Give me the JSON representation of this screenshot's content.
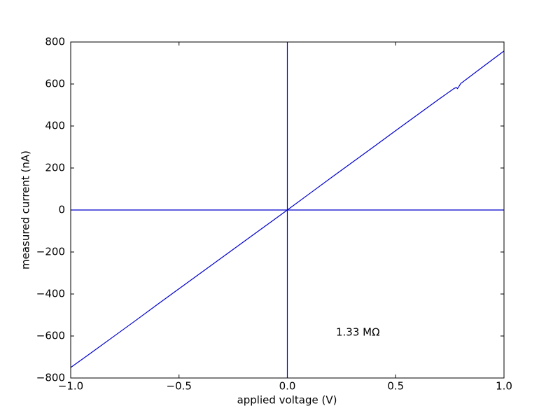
{
  "chart_data": {
    "type": "line",
    "xlabel": "applied voltage (V)",
    "ylabel": "measured current (nA)",
    "annotation": "1.33 MΩ",
    "x": [
      -1,
      -0.9,
      -0.8,
      -0.7,
      -0.6,
      -0.5,
      -0.4,
      -0.3,
      -0.2,
      -0.1,
      0,
      0.1,
      0.2,
      0.3,
      0.4,
      0.5,
      0.6,
      0.7,
      0.77,
      0.78,
      0.785,
      0.79,
      0.8,
      0.9,
      1
    ],
    "series": [
      {
        "color": "#0000cc",
        "values": [
          -750,
          -676,
          -601,
          -526,
          -450,
          -375,
          -300,
          -225,
          -150,
          -75,
          0,
          76,
          152,
          227,
          302,
          378,
          453,
          528,
          579,
          583,
          578,
          585,
          602,
          680,
          757
        ]
      }
    ],
    "hlines": [
      0
    ],
    "vlines": [
      0
    ],
    "xlim": [
      -1,
      1
    ],
    "xticks": [
      {
        "value": -1,
        "label": "−1.0"
      },
      {
        "value": -0.5,
        "label": "−0.5"
      },
      {
        "value": 0,
        "label": "0.0"
      },
      {
        "value": 0.5,
        "label": "0.5"
      },
      {
        "value": 1,
        "label": "1.0"
      }
    ],
    "ylim": [
      -800,
      800
    ],
    "yticks": [
      {
        "value": -800,
        "label": "−800"
      },
      {
        "value": -600,
        "label": "−600"
      },
      {
        "value": -400,
        "label": "−400"
      },
      {
        "value": -200,
        "label": "−200"
      },
      0,
      200,
      400,
      600,
      800
    ]
  }
}
